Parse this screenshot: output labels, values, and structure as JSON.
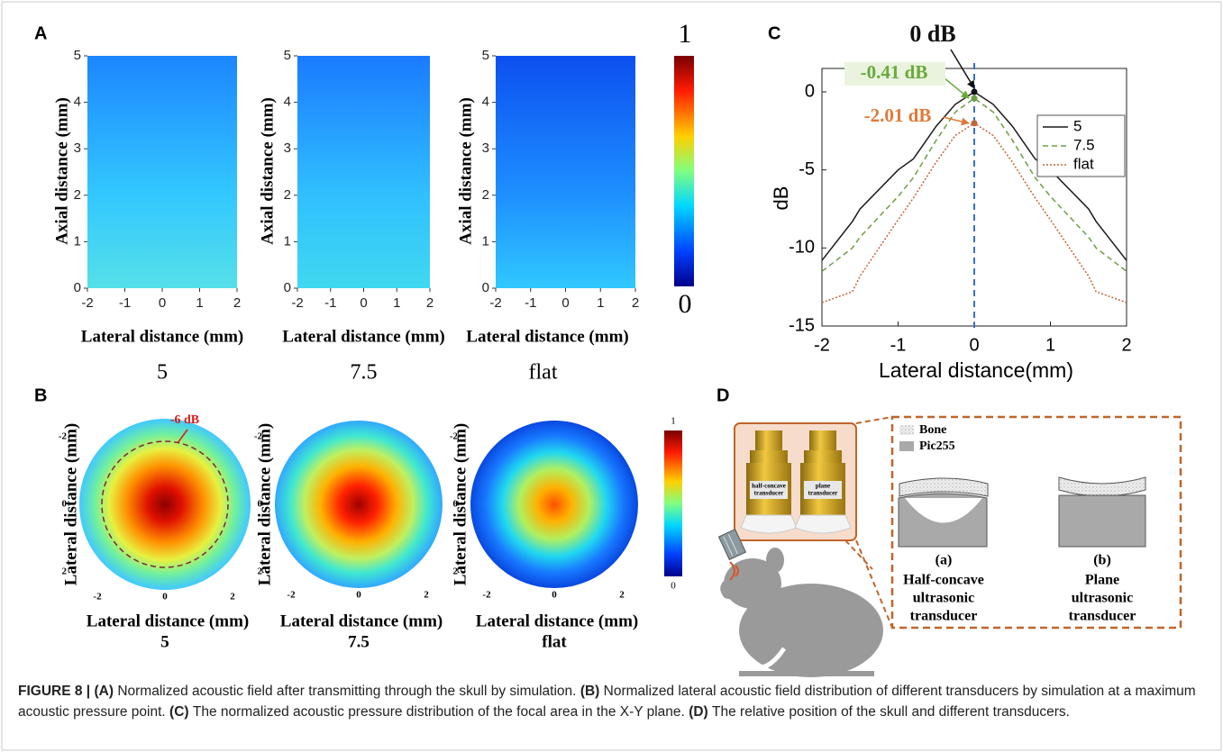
{
  "panels": {
    "A": {
      "label": "A",
      "y_label": "Axial distance (mm)",
      "x_label": "Lateral distance (mm)",
      "ylim": [
        0,
        5
      ],
      "xlim": [
        -2,
        2
      ],
      "yticks": [
        0,
        1,
        2,
        3,
        4,
        5
      ],
      "xticks": [
        -2,
        -1,
        0,
        1,
        2
      ],
      "names": [
        "5",
        "7.5",
        "flat"
      ],
      "colorbar": {
        "max": 1,
        "min": 0
      }
    },
    "B": {
      "label": "B",
      "axis_label": "Lateral distance (mm)",
      "lim": [
        -2,
        2
      ],
      "ticks": [
        -2,
        0,
        2
      ],
      "names": [
        "5",
        "7.5",
        "flat"
      ],
      "annotation": "-6 dB",
      "colorbar": {
        "max": 1,
        "min": 0
      }
    },
    "C": {
      "label": "C"
    },
    "D": {
      "label": "D",
      "legend": [
        "Bone",
        "Pic255"
      ],
      "inset": [
        [
          "half-concave",
          "transducer"
        ],
        [
          "plane",
          "transducer"
        ]
      ],
      "designs": [
        {
          "tag": "(a)",
          "lines": [
            "Half-concave",
            "ultrasonic",
            "transducer"
          ]
        },
        {
          "tag": "(b)",
          "lines": [
            "Plane",
            "ultrasonic",
            "transducer"
          ]
        }
      ]
    }
  },
  "chart_data": {
    "type": "line",
    "x_label": "Lateral distance(mm)",
    "y_label": "dB",
    "x": [
      -2,
      -1.6,
      -1.5,
      -1,
      -0.8,
      -0.5,
      -0.25,
      0,
      0.25,
      0.5,
      0.8,
      1,
      1.5,
      1.6,
      2
    ],
    "series": [
      {
        "name": "5",
        "color": "#1a1a1a",
        "dash": "solid",
        "values": [
          -10.8,
          -8.3,
          -7.5,
          -5.0,
          -4.3,
          -2.2,
          -0.8,
          0,
          -0.8,
          -2.2,
          -4.3,
          -5.0,
          -7.5,
          -8.3,
          -10.8
        ]
      },
      {
        "name": "7.5",
        "color": "#6f9e45",
        "dash": "dashed",
        "values": [
          -11.5,
          -10,
          -9.3,
          -6.7,
          -5.5,
          -3.1,
          -1.3,
          -0.41,
          -1.3,
          -3.1,
          -5.5,
          -6.7,
          -9.3,
          -10,
          -11.5
        ]
      },
      {
        "name": "flat",
        "color": "#c0653a",
        "dash": "dotted",
        "values": [
          -13.5,
          -12.8,
          -11.8,
          -8.2,
          -6.8,
          -4.5,
          -2.8,
          -2.01,
          -2.8,
          -4.5,
          -6.8,
          -8.2,
          -11.8,
          -12.8,
          -13.5
        ]
      }
    ],
    "xlim": [
      -2,
      2
    ],
    "ylim": [
      -15,
      1.5
    ],
    "xticks": [
      -2,
      -1,
      0,
      1,
      2
    ],
    "yticks": [
      0,
      -5,
      -10,
      -15
    ],
    "legend": "upper right",
    "annotations": [
      {
        "text": "0 dB",
        "color": "#111111"
      },
      {
        "text": "-0.41 dB",
        "color": "#6aaa3a"
      },
      {
        "text": "-2.01 dB",
        "color": "#e07a3a"
      }
    ]
  },
  "caption": {
    "prefix": "FIGURE 8 |",
    "items": [
      {
        "tag": "(A)",
        "text": "Normalized acoustic field after transmitting through the skull by simulation."
      },
      {
        "tag": "(B)",
        "text": "Normalized lateral acoustic field distribution of different transducers by simulation at a maximum acoustic pressure point."
      },
      {
        "tag": "(C)",
        "text": "The normalized acoustic pressure distribution of the focal area in the X-Y plane."
      },
      {
        "tag": "(D)",
        "text": "The relative position of the skull and different transducers."
      }
    ]
  }
}
